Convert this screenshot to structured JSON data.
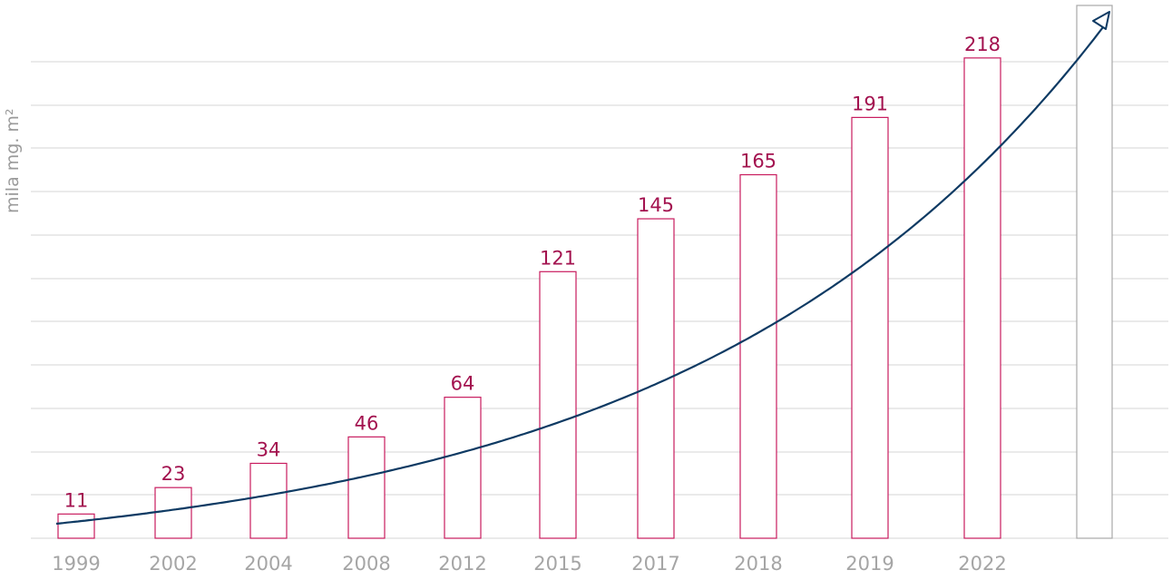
{
  "chart_data": {
    "type": "bar",
    "categories": [
      "1999",
      "2002",
      "2004",
      "2008",
      "2012",
      "2015",
      "2017",
      "2018",
      "2019",
      "2022"
    ],
    "values": [
      11,
      23,
      34,
      46,
      64,
      121,
      145,
      165,
      191,
      218
    ],
    "ylabel": "mila mg. m²",
    "ylim": [
      0,
      220
    ],
    "grid": true,
    "extra_empty_bar": true,
    "trend_arrow": true,
    "colors": {
      "bar_outline": "#c81b5e",
      "value_label": "#a3124f",
      "trend": "#0e3a63",
      "grid": "#d4d4d4",
      "axis_text": "#a5a5a5",
      "empty_bar_outline": "#a8a8a8"
    }
  }
}
